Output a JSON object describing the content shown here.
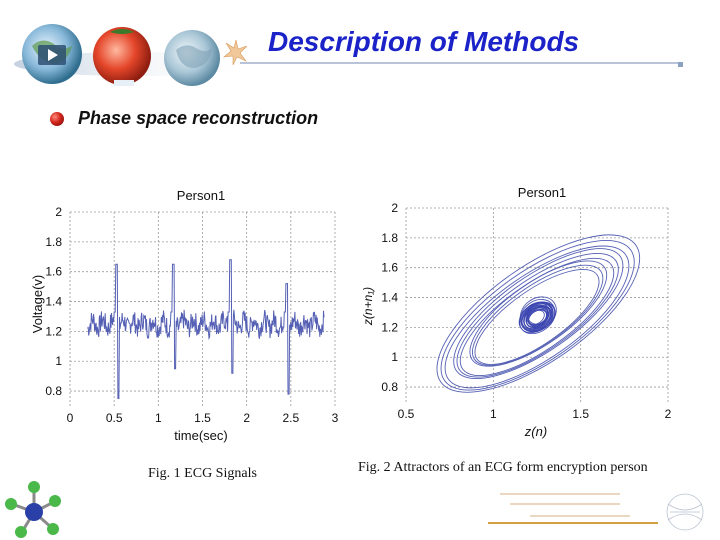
{
  "slide": {
    "title": "Description of Methods",
    "bullet": "Phase space reconstruction",
    "captions": {
      "fig1": "Fig. 1 ECG Signals",
      "fig2": "Fig. 2 Attractors of an ECG form encryption person"
    },
    "colors": {
      "title": "#1a22c8",
      "trace": "#5560b4",
      "bullet": "#d0241a"
    },
    "icons": {
      "header": "globe-tomato-banner-icon",
      "bullet": "red-sphere-bullet-icon",
      "molecule": "molecule-icon",
      "footer": "university-logo-icon"
    }
  },
  "chart_data": [
    {
      "type": "line",
      "title": "Person1",
      "xlabel": "time(sec)",
      "ylabel": "Voltage(v)",
      "xlim": [
        0,
        3
      ],
      "ylim": [
        0.7,
        2
      ],
      "x_ticks": [
        0,
        0.5,
        1,
        1.5,
        2,
        2.5,
        3
      ],
      "y_ticks": [
        0.8,
        1,
        1.2,
        1.4,
        1.6,
        1.8,
        2
      ],
      "x_tick_labels": [
        "0",
        "0.5",
        "1",
        "1.5",
        "2",
        "2.5",
        "3"
      ],
      "y_tick_labels": [
        "0.8",
        "1",
        "1.2",
        "1.4",
        "1.6",
        "1.8",
        "2"
      ],
      "grid": true,
      "baseline": 1.25,
      "beats": [
        {
          "t": 0.53,
          "peak": 1.65,
          "trough": 0.75
        },
        {
          "t": 1.17,
          "peak": 1.65,
          "trough": 0.95
        },
        {
          "t": 1.82,
          "peak": 1.68,
          "trough": 0.92
        },
        {
          "t": 2.45,
          "peak": 1.52,
          "trough": 0.78
        }
      ]
    },
    {
      "type": "line",
      "title": "Person1",
      "xlabel": "z(n)",
      "ylabel": "z(n+n₁)",
      "xlim": [
        0.5,
        2
      ],
      "ylim": [
        0.7,
        2
      ],
      "x_ticks": [
        0.5,
        1,
        1.5,
        2
      ],
      "y_ticks": [
        0.8,
        1,
        1.2,
        1.4,
        1.6,
        1.8,
        2
      ],
      "x_tick_labels": [
        "0.5",
        "1",
        "1.5",
        "2"
      ],
      "y_tick_labels": [
        "0.8",
        "1",
        "1.2",
        "1.4",
        "1.6",
        "1.8",
        "2"
      ],
      "grid": true,
      "attractor_center": [
        1.25,
        1.27
      ],
      "loops": [
        {
          "rx": 0.06,
          "ry": 0.06
        },
        {
          "rx": 0.1,
          "ry": 0.09
        },
        {
          "rx": 0.42,
          "ry": 0.18
        },
        {
          "rx": 0.52,
          "ry": 0.22
        },
        {
          "rx": 0.62,
          "ry": 0.28
        }
      ]
    }
  ]
}
